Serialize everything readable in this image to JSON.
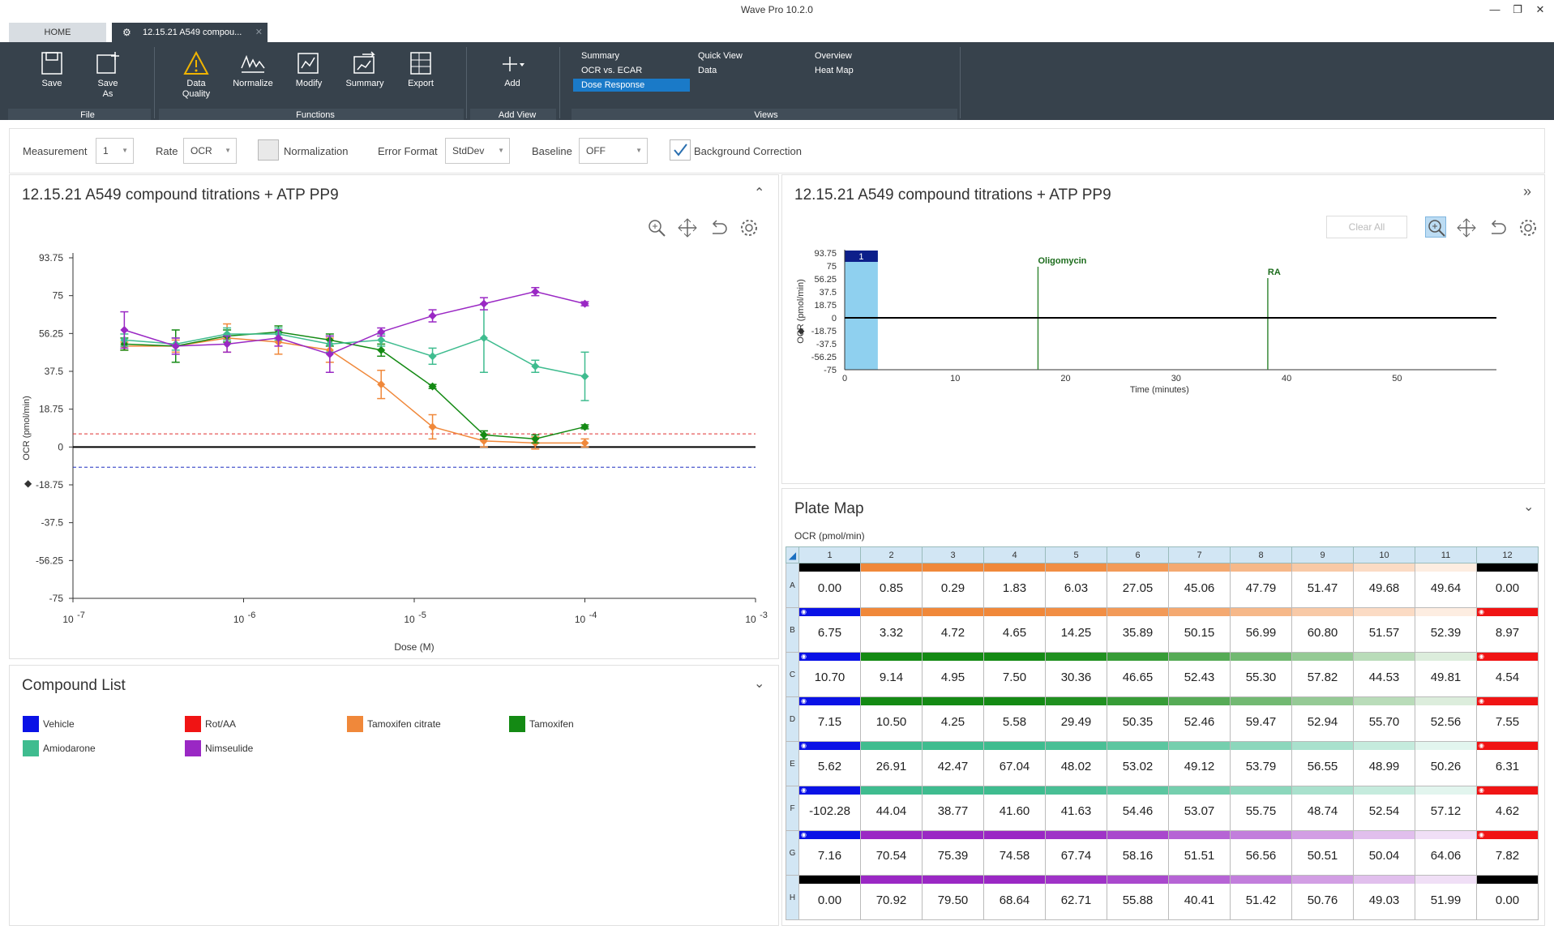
{
  "app": {
    "title": "Wave Pro 10.2.0"
  },
  "tabs": {
    "home": "HOME",
    "doc": "12.15.21 A549 compou..."
  },
  "ribbon": {
    "save": "Save",
    "save_as": "Save As",
    "data_quality": "Data Quality",
    "normalize": "Normalize",
    "modify": "Modify",
    "summary": "Summary",
    "export": "Export",
    "add": "Add",
    "groups": {
      "file": "File",
      "functions": "Functions",
      "add_view": "Add View",
      "views": "Views"
    },
    "views": {
      "summary": "Summary",
      "ocr_ecar": "OCR vs. ECAR",
      "dose_response": "Dose Response",
      "quick_view": "Quick View",
      "data": "Data",
      "overview": "Overview",
      "heat_map": "Heat Map"
    }
  },
  "toolbar": {
    "measurement_label": "Measurement",
    "measurement_value": "1",
    "rate_label": "Rate",
    "rate_value": "OCR",
    "normalization_label": "Normalization",
    "error_format_label": "Error Format",
    "error_format_value": "StdDev",
    "baseline_label": "Baseline",
    "baseline_value": "OFF",
    "background_correction_label": "Background Correction"
  },
  "dose_panel": {
    "title": "12.15.21 A549 compound titrations + ATP PP9"
  },
  "kinetic_panel": {
    "title": "12.15.21 A549 compound titrations + ATP PP9",
    "clear_all": "Clear All"
  },
  "compound_list": {
    "title": "Compound List",
    "items": [
      {
        "name": "Vehicle",
        "color": "#0a12e6"
      },
      {
        "name": "Rot/AA",
        "color": "#f01414"
      },
      {
        "name": "Tamoxifen citrate",
        "color": "#f0883a"
      },
      {
        "name": "Tamoxifen",
        "color": "#148a14"
      },
      {
        "name": "Amiodarone",
        "color": "#3fbc8f"
      },
      {
        "name": "Nimseulide",
        "color": "#9a28c4"
      }
    ]
  },
  "plate_map": {
    "title": "Plate Map",
    "unit": "OCR (pmol/min)",
    "columns": [
      "1",
      "2",
      "3",
      "4",
      "5",
      "6",
      "7",
      "8",
      "9",
      "10",
      "11",
      "12"
    ],
    "rows": [
      {
        "label": "A",
        "values": [
          "0.00",
          "0.85",
          "0.29",
          "1.83",
          "6.03",
          "27.05",
          "45.06",
          "47.79",
          "51.47",
          "49.68",
          "49.64",
          "0.00"
        ]
      },
      {
        "label": "B",
        "values": [
          "6.75",
          "3.32",
          "4.72",
          "4.65",
          "14.25",
          "35.89",
          "50.15",
          "56.99",
          "60.80",
          "51.57",
          "52.39",
          "8.97"
        ]
      },
      {
        "label": "C",
        "values": [
          "10.70",
          "9.14",
          "4.95",
          "7.50",
          "30.36",
          "46.65",
          "52.43",
          "55.30",
          "57.82",
          "44.53",
          "49.81",
          "4.54"
        ]
      },
      {
        "label": "D",
        "values": [
          "7.15",
          "10.50",
          "4.25",
          "5.58",
          "29.49",
          "50.35",
          "52.46",
          "59.47",
          "52.94",
          "55.70",
          "52.56",
          "7.55"
        ]
      },
      {
        "label": "E",
        "values": [
          "5.62",
          "26.91",
          "42.47",
          "67.04",
          "48.02",
          "53.02",
          "49.12",
          "53.79",
          "56.55",
          "48.99",
          "50.26",
          "6.31"
        ]
      },
      {
        "label": "F",
        "values": [
          "-102.28",
          "44.04",
          "38.77",
          "41.60",
          "41.63",
          "54.46",
          "53.07",
          "55.75",
          "48.74",
          "52.54",
          "57.12",
          "4.62"
        ]
      },
      {
        "label": "G",
        "values": [
          "7.16",
          "70.54",
          "75.39",
          "74.58",
          "67.74",
          "58.16",
          "51.51",
          "56.56",
          "50.51",
          "50.04",
          "64.06",
          "7.82"
        ]
      },
      {
        "label": "H",
        "values": [
          "0.00",
          "70.92",
          "79.50",
          "68.64",
          "62.71",
          "55.88",
          "40.41",
          "51.42",
          "50.76",
          "49.03",
          "51.99",
          "0.00"
        ]
      }
    ]
  },
  "chart_data": [
    {
      "type": "line",
      "xlabel": "Dose (M)",
      "ylabel": "OCR (pmol/min)",
      "x_scale": "log",
      "xlim": [
        1e-07,
        0.001
      ],
      "x_tick_labels": [
        "10",
        "10",
        "10",
        "10",
        "10"
      ],
      "x_tick_exponents": [
        "-7",
        "-6",
        "-5",
        "-4",
        "-3"
      ],
      "ylim": [
        -75,
        93.75
      ],
      "y_ticks": [
        "93.75",
        "75",
        "56.25",
        "37.5",
        "18.75",
        "0",
        "-18.75",
        "-37.5",
        "-56.25",
        "-75"
      ],
      "threshold_lines": [
        {
          "y": 6.5,
          "color": "#e03030"
        },
        {
          "y": -10,
          "color": "#2030c0"
        }
      ],
      "series": [
        {
          "color": "#f0883a",
          "x": [
            2e-07,
            4e-07,
            8e-07,
            1.6e-06,
            3.2e-06,
            6.4e-06,
            1.28e-05,
            2.56e-05,
            5.12e-05,
            0.0001
          ],
          "y": [
            50,
            50,
            54,
            52,
            48,
            31,
            10,
            3,
            2,
            2
          ],
          "err": [
            2,
            3,
            7,
            6,
            6,
            7,
            6,
            3,
            3,
            2
          ]
        },
        {
          "color": "#148a14",
          "x": [
            2e-07,
            4e-07,
            8e-07,
            1.6e-06,
            3.2e-06,
            6.4e-06,
            1.28e-05,
            2.56e-05,
            5.12e-05,
            0.0001
          ],
          "y": [
            51,
            50,
            55,
            57,
            53,
            48,
            30,
            6,
            4,
            10
          ],
          "err": [
            3,
            8,
            3,
            3,
            3,
            3,
            1,
            2,
            2,
            1
          ]
        },
        {
          "color": "#3fbc8f",
          "x": [
            2e-07,
            4e-07,
            8e-07,
            1.6e-06,
            3.2e-06,
            6.4e-06,
            1.28e-05,
            2.56e-05,
            5.12e-05,
            0.0001
          ],
          "y": [
            53,
            51,
            56,
            56,
            51,
            53,
            45,
            54,
            40,
            35
          ],
          "err": [
            3,
            3,
            3,
            3,
            4,
            3,
            4,
            17,
            3,
            12
          ]
        },
        {
          "color": "#9a28c4",
          "x": [
            2e-07,
            4e-07,
            8e-07,
            1.6e-06,
            3.2e-06,
            6.4e-06,
            1.28e-05,
            2.56e-05,
            5.12e-05,
            0.0001
          ],
          "y": [
            58,
            50,
            51,
            54,
            46,
            57,
            65,
            71,
            77,
            71
          ],
          "err": [
            9,
            4,
            4,
            4,
            9,
            2,
            3,
            3,
            2,
            1
          ]
        }
      ]
    },
    {
      "type": "line",
      "xlabel": "Time (minutes)",
      "ylabel": "OCR (pmol/min)",
      "xlim": [
        0,
        59
      ],
      "x_ticks": [
        "0",
        "10",
        "20",
        "30",
        "40",
        "50"
      ],
      "ylim": [
        -75,
        93.75
      ],
      "y_ticks": [
        "93.75",
        "75",
        "56.25",
        "37.5",
        "18.75",
        "0",
        "-18.75",
        "-37.5",
        "-56.25",
        "-75"
      ],
      "measurement_marker": {
        "label": "1",
        "x_start": 0,
        "x_end": 3
      },
      "injections": [
        {
          "label": "Oligomycin",
          "x": 17.5
        },
        {
          "label": "RA",
          "x": 38.3
        }
      ],
      "series": [
        {
          "x": [
            0,
            59
          ],
          "y": [
            0,
            0
          ],
          "color": "#000000"
        }
      ]
    }
  ]
}
